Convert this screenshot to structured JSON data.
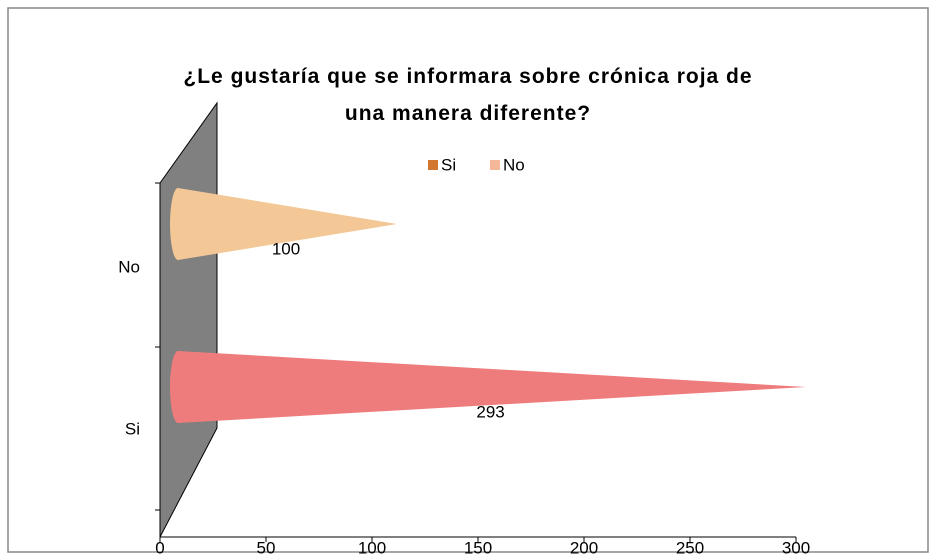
{
  "chart_data": {
    "type": "cone-bar",
    "title": "¿Le gustaría que se informara sobre crónica roja de una manera diferente?",
    "categories": [
      "Si",
      "No"
    ],
    "values": [
      293,
      100
    ],
    "colors": [
      "#ef7c7c",
      "#f3c896"
    ],
    "legend_colors": [
      "#d2772e",
      "#f4b898"
    ],
    "xlim": [
      0,
      300
    ],
    "xticks": [
      0,
      50,
      100,
      150,
      200,
      250,
      300
    ]
  }
}
